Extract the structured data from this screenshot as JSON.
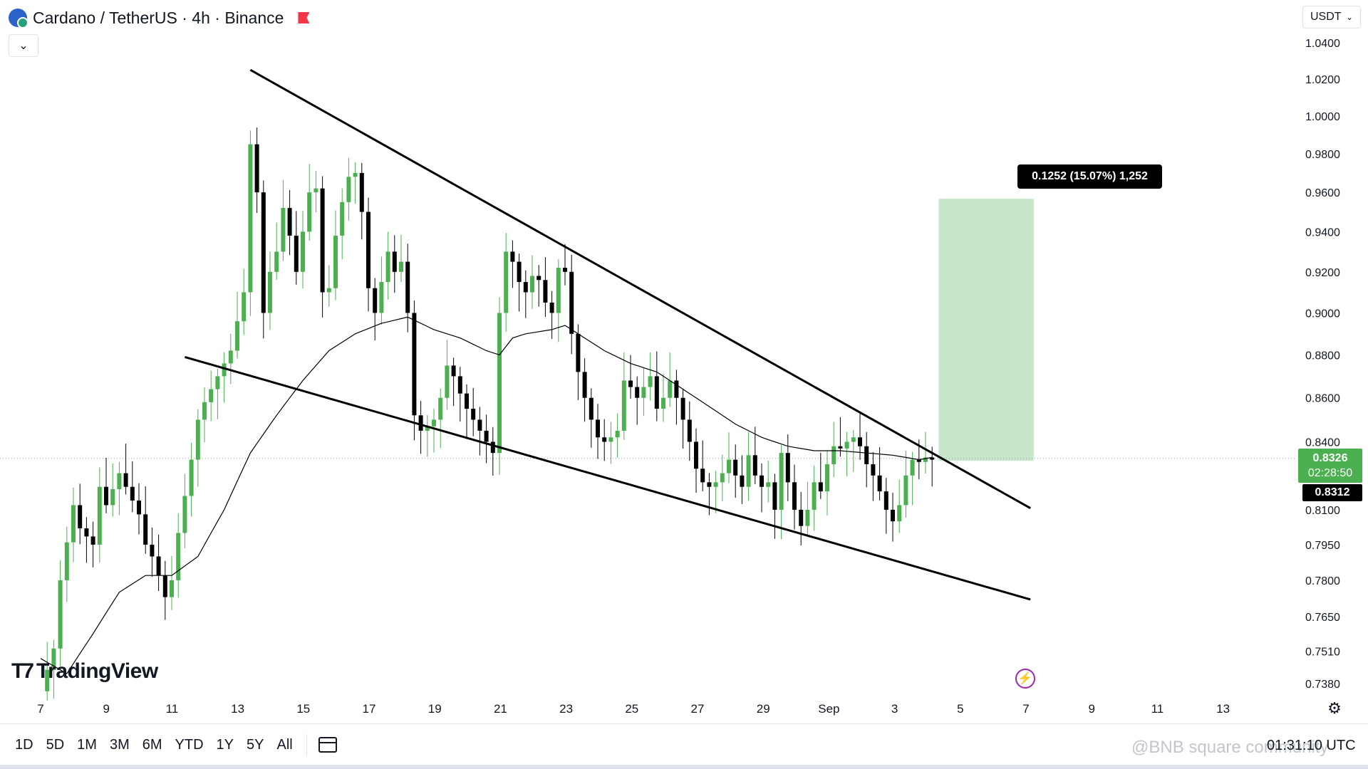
{
  "header": {
    "symbol_title": "Cardano / TetherUS · 4h · Binance",
    "currency": "USDT"
  },
  "colors": {
    "up": "#4caf50",
    "down": "#000000",
    "target_zone": "#c8e6c9",
    "flash": "#9c27b0"
  },
  "chart_data": {
    "type": "candlestick",
    "pair": "ADA/USDT",
    "timeframe": "4h",
    "y_axis": {
      "ticks": [
        "1.0400",
        "1.0200",
        "1.0000",
        "0.9800",
        "0.9600",
        "0.9400",
        "0.9200",
        "0.9000",
        "0.8800",
        "0.8600",
        "0.8400",
        "0.8100",
        "0.7950",
        "0.7800",
        "0.7650",
        "0.7510",
        "0.7380"
      ],
      "scale": "log",
      "range": [
        0.733,
        1.048
      ]
    },
    "x_axis": {
      "ticks": [
        "7",
        "9",
        "11",
        "13",
        "15",
        "17",
        "19",
        "21",
        "23",
        "25",
        "27",
        "29",
        "Sep",
        "3",
        "5",
        "7",
        "9",
        "11",
        "13"
      ]
    },
    "last_price": "0.8326",
    "countdown": "02:28:50",
    "close_price": "0.8312",
    "price_path": [
      [
        0,
        0.735
      ],
      [
        2,
        0.752
      ],
      [
        3,
        0.78
      ],
      [
        5,
        0.812
      ],
      [
        6,
        0.802
      ],
      [
        8,
        0.795
      ],
      [
        9,
        0.82
      ],
      [
        10,
        0.812
      ],
      [
        12,
        0.826
      ],
      [
        13,
        0.82
      ],
      [
        15,
        0.808
      ],
      [
        16,
        0.795
      ],
      [
        17,
        0.79
      ],
      [
        18,
        0.782
      ],
      [
        19,
        0.773
      ],
      [
        20,
        0.78
      ],
      [
        21,
        0.8
      ],
      [
        23,
        0.832
      ],
      [
        24,
        0.85
      ],
      [
        25,
        0.858
      ],
      [
        27,
        0.87
      ],
      [
        29,
        0.882
      ],
      [
        31,
        0.91
      ],
      [
        32,
        0.985
      ],
      [
        33,
        0.96
      ],
      [
        34,
        0.9
      ],
      [
        35,
        0.92
      ],
      [
        36,
        0.93
      ],
      [
        37,
        0.952
      ],
      [
        38,
        0.938
      ],
      [
        39,
        0.92
      ],
      [
        40,
        0.94
      ],
      [
        41,
        0.96
      ],
      [
        42,
        0.962
      ],
      [
        43,
        0.91
      ],
      [
        44,
        0.912
      ],
      [
        45,
        0.938
      ],
      [
        46,
        0.955
      ],
      [
        47,
        0.968
      ],
      [
        48,
        0.97
      ],
      [
        49,
        0.95
      ],
      [
        50,
        0.912
      ],
      [
        51,
        0.9
      ],
      [
        52,
        0.915
      ],
      [
        53,
        0.93
      ],
      [
        54,
        0.92
      ],
      [
        55,
        0.925
      ],
      [
        56,
        0.9
      ],
      [
        57,
        0.852
      ],
      [
        58,
        0.845
      ],
      [
        59,
        0.847
      ],
      [
        60,
        0.85
      ],
      [
        61,
        0.86
      ],
      [
        62,
        0.875
      ],
      [
        63,
        0.87
      ],
      [
        64,
        0.862
      ],
      [
        65,
        0.855
      ],
      [
        66,
        0.85
      ],
      [
        67,
        0.845
      ],
      [
        68,
        0.84
      ],
      [
        69,
        0.835
      ],
      [
        70,
        0.9
      ],
      [
        71,
        0.93
      ],
      [
        72,
        0.925
      ],
      [
        73,
        0.915
      ],
      [
        74,
        0.91
      ],
      [
        75,
        0.918
      ],
      [
        76,
        0.916
      ],
      [
        77,
        0.905
      ],
      [
        78,
        0.9
      ],
      [
        79,
        0.922
      ],
      [
        80,
        0.92
      ],
      [
        81,
        0.89
      ],
      [
        82,
        0.872
      ],
      [
        83,
        0.86
      ],
      [
        84,
        0.85
      ],
      [
        85,
        0.842
      ],
      [
        86,
        0.84
      ],
      [
        87,
        0.842
      ],
      [
        88,
        0.845
      ],
      [
        89,
        0.868
      ],
      [
        90,
        0.865
      ],
      [
        91,
        0.86
      ],
      [
        92,
        0.865
      ],
      [
        93,
        0.87
      ],
      [
        94,
        0.855
      ],
      [
        95,
        0.86
      ],
      [
        96,
        0.868
      ],
      [
        97,
        0.86
      ],
      [
        98,
        0.85
      ],
      [
        99,
        0.84
      ],
      [
        100,
        0.828
      ],
      [
        101,
        0.822
      ],
      [
        102,
        0.82
      ],
      [
        103,
        0.822
      ],
      [
        104,
        0.826
      ],
      [
        105,
        0.832
      ],
      [
        106,
        0.825
      ],
      [
        107,
        0.82
      ],
      [
        108,
        0.834
      ],
      [
        109,
        0.825
      ],
      [
        110,
        0.82
      ],
      [
        111,
        0.822
      ],
      [
        112,
        0.81
      ],
      [
        113,
        0.835
      ],
      [
        114,
        0.822
      ],
      [
        115,
        0.81
      ],
      [
        116,
        0.803
      ],
      [
        117,
        0.81
      ],
      [
        118,
        0.822
      ],
      [
        119,
        0.818
      ],
      [
        120,
        0.83
      ],
      [
        121,
        0.838
      ],
      [
        122,
        0.837
      ],
      [
        123,
        0.84
      ],
      [
        124,
        0.842
      ],
      [
        125,
        0.838
      ],
      [
        126,
        0.83
      ],
      [
        127,
        0.825
      ],
      [
        128,
        0.818
      ],
      [
        129,
        0.81
      ],
      [
        130,
        0.805
      ],
      [
        131,
        0.812
      ],
      [
        132,
        0.825
      ],
      [
        133,
        0.832
      ],
      [
        134,
        0.831
      ],
      [
        135,
        0.833
      ],
      [
        136,
        0.832
      ]
    ],
    "ma_path": [
      [
        0,
        0.748
      ],
      [
        4,
        0.742
      ],
      [
        8,
        0.758
      ],
      [
        12,
        0.775
      ],
      [
        16,
        0.782
      ],
      [
        20,
        0.782
      ],
      [
        24,
        0.79
      ],
      [
        28,
        0.81
      ],
      [
        32,
        0.835
      ],
      [
        36,
        0.852
      ],
      [
        40,
        0.868
      ],
      [
        44,
        0.882
      ],
      [
        48,
        0.89
      ],
      [
        52,
        0.895
      ],
      [
        56,
        0.898
      ],
      [
        60,
        0.892
      ],
      [
        64,
        0.888
      ],
      [
        68,
        0.882
      ],
      [
        70,
        0.88
      ],
      [
        72,
        0.888
      ],
      [
        74,
        0.89
      ],
      [
        78,
        0.892
      ],
      [
        80,
        0.894
      ],
      [
        82,
        0.89
      ],
      [
        86,
        0.882
      ],
      [
        90,
        0.876
      ],
      [
        94,
        0.872
      ],
      [
        98,
        0.864
      ],
      [
        102,
        0.856
      ],
      [
        106,
        0.848
      ],
      [
        110,
        0.842
      ],
      [
        114,
        0.838
      ],
      [
        118,
        0.836
      ],
      [
        122,
        0.836
      ],
      [
        126,
        0.835
      ],
      [
        130,
        0.834
      ],
      [
        134,
        0.832
      ],
      [
        136,
        0.833
      ]
    ],
    "trendlines": [
      {
        "name": "upper",
        "from": [
          32,
          1.025
        ],
        "to": [
          136,
          0.835
        ],
        "extend_to": 151
      },
      {
        "name": "lower",
        "from": [
          22,
          0.879
        ],
        "to": [
          151,
          0.772
        ]
      }
    ],
    "measure": {
      "label": "0.1252 (15.07%) 1,252",
      "price_from": 0.8315,
      "price_to": 0.9567
    }
  },
  "logo": {
    "text": "TradingView"
  },
  "ranges": [
    "1D",
    "5D",
    "1M",
    "3M",
    "6M",
    "YTD",
    "1Y",
    "5Y",
    "All"
  ],
  "clock": "01:31:10 UTC",
  "watermark": "@BNB square community",
  "icons": [
    "collapse-chevron-icon",
    "flag-icon",
    "flash-icon",
    "gear-icon",
    "calendar-icon",
    "chevron-down-icon"
  ]
}
